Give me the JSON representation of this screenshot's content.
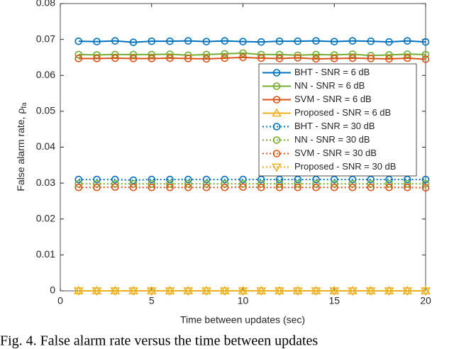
{
  "chart_data": {
    "type": "line",
    "xlabel": "Time between updates (sec)",
    "ylabel": "False alarm rate, ρ",
    "ylabel_subscript": "fa",
    "caption": "Fig. 4. False alarm rate versus the time between updates",
    "x": [
      1,
      2,
      3,
      4,
      5,
      6,
      7,
      8,
      9,
      10,
      11,
      12,
      13,
      14,
      15,
      16,
      17,
      18,
      19,
      20
    ],
    "xlim": [
      0,
      20
    ],
    "xticks": [
      0,
      5,
      10,
      15,
      20
    ],
    "ylim": [
      0,
      0.08
    ],
    "yticks": [
      0,
      0.01,
      0.02,
      0.03,
      0.04,
      0.05,
      0.06,
      0.07,
      0.08
    ],
    "grid": false,
    "legend": "upper right",
    "series": [
      {
        "name": "BHT - SNR = 6 dB",
        "color": "#0072bd",
        "linestyle": "solid",
        "marker": "circle",
        "values": [
          0.0695,
          0.0694,
          0.0696,
          0.0692,
          0.0695,
          0.0695,
          0.0696,
          0.0694,
          0.0696,
          0.0694,
          0.0693,
          0.0695,
          0.0695,
          0.0696,
          0.0694,
          0.0696,
          0.0695,
          0.0693,
          0.0696,
          0.0693
        ]
      },
      {
        "name": "NN - SNR = 6 dB",
        "color": "#77ac30",
        "linestyle": "solid",
        "marker": "circle",
        "values": [
          0.0658,
          0.0657,
          0.0658,
          0.0658,
          0.0658,
          0.0659,
          0.0656,
          0.0658,
          0.066,
          0.0662,
          0.0658,
          0.0658,
          0.0656,
          0.0658,
          0.0657,
          0.0659,
          0.0655,
          0.0657,
          0.0659,
          0.0658
        ]
      },
      {
        "name": "SVM - SNR = 6 dB",
        "color": "#d95319",
        "linestyle": "solid",
        "marker": "circle",
        "values": [
          0.0647,
          0.0647,
          0.0648,
          0.0647,
          0.0647,
          0.0648,
          0.0647,
          0.0646,
          0.0648,
          0.065,
          0.0648,
          0.0647,
          0.0649,
          0.0646,
          0.0647,
          0.0648,
          0.0647,
          0.0646,
          0.0648,
          0.0645
        ]
      },
      {
        "name": "Proposed - SNR = 6 dB",
        "color": "#edb120",
        "linestyle": "solid",
        "marker": "triangle-up",
        "values": [
          0,
          0,
          0,
          0,
          0,
          0,
          0,
          0,
          0,
          0,
          0,
          0,
          0,
          0,
          0,
          0,
          0,
          0,
          0,
          0
        ]
      },
      {
        "name": "BHT - SNR = 30 dB",
        "color": "#0072bd",
        "linestyle": "dotted",
        "marker": "circle",
        "values": [
          0.031,
          0.031,
          0.031,
          0.0308,
          0.031,
          0.031,
          0.031,
          0.031,
          0.031,
          0.031,
          0.031,
          0.031,
          0.031,
          0.031,
          0.031,
          0.031,
          0.031,
          0.031,
          0.031,
          0.031
        ]
      },
      {
        "name": "NN - SNR = 30 dB",
        "color": "#77ac30",
        "linestyle": "dotted",
        "marker": "circle",
        "values": [
          0.0298,
          0.0298,
          0.0298,
          0.0298,
          0.0298,
          0.0298,
          0.0298,
          0.0298,
          0.0298,
          0.0298,
          0.0298,
          0.0298,
          0.0298,
          0.0298,
          0.0298,
          0.0298,
          0.0298,
          0.0298,
          0.0298,
          0.0298
        ]
      },
      {
        "name": "SVM - SNR = 30 dB",
        "color": "#d95319",
        "linestyle": "dotted",
        "marker": "circle",
        "values": [
          0.0288,
          0.0288,
          0.0289,
          0.0288,
          0.0288,
          0.0288,
          0.0288,
          0.0288,
          0.0288,
          0.0289,
          0.0288,
          0.0288,
          0.0288,
          0.0288,
          0.0288,
          0.0288,
          0.0288,
          0.0288,
          0.0288,
          0.0287
        ]
      },
      {
        "name": "Proposed - SNR = 30 dB",
        "color": "#edb120",
        "linestyle": "dotted",
        "marker": "triangle-down",
        "values": [
          0,
          0,
          0,
          0,
          0,
          0,
          0,
          0,
          0,
          0,
          0,
          0,
          0,
          0,
          0,
          0,
          0,
          0,
          0,
          0
        ]
      }
    ]
  }
}
